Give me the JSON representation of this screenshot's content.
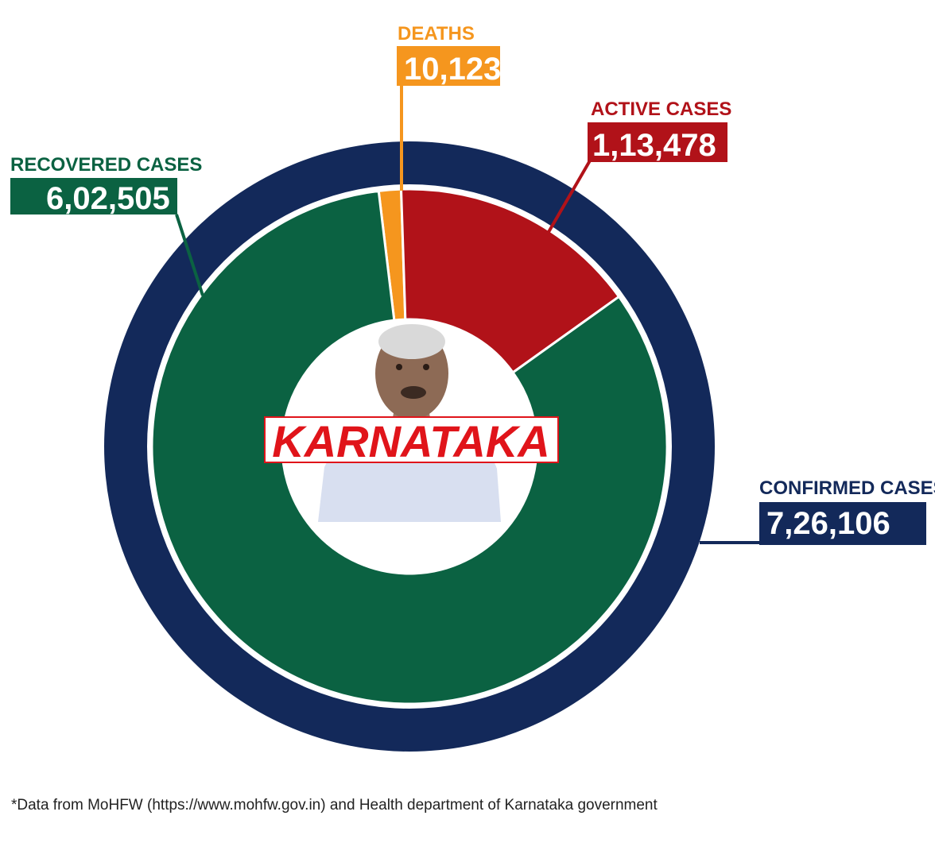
{
  "chart_data": {
    "type": "pie",
    "style": "donut",
    "confirmed": {
      "label": "CONFIRMED CASES",
      "value": 726106,
      "display": "7,26,106",
      "color": "#13295a"
    },
    "slices": [
      {
        "key": "deaths",
        "label": "DEATHS",
        "value": 10123,
        "display": "10,123",
        "color": "#f5961e"
      },
      {
        "key": "active",
        "label": "ACTIVE CASES",
        "value": 113478,
        "display": "1,13,478",
        "color": "#b11219"
      },
      {
        "key": "recovered",
        "label": "RECOVERED CASES",
        "value": 602505,
        "display": "6,02,505",
        "color": "#0b6242"
      }
    ],
    "center_label": "KARNATAKA",
    "center_label_color": "#e0141a",
    "legend": "callout-labels"
  },
  "footnote": "*Data from MoHFW (https://www.mohfw.gov.in) and Health department of Karnataka government",
  "center_image": "portrait-photo"
}
